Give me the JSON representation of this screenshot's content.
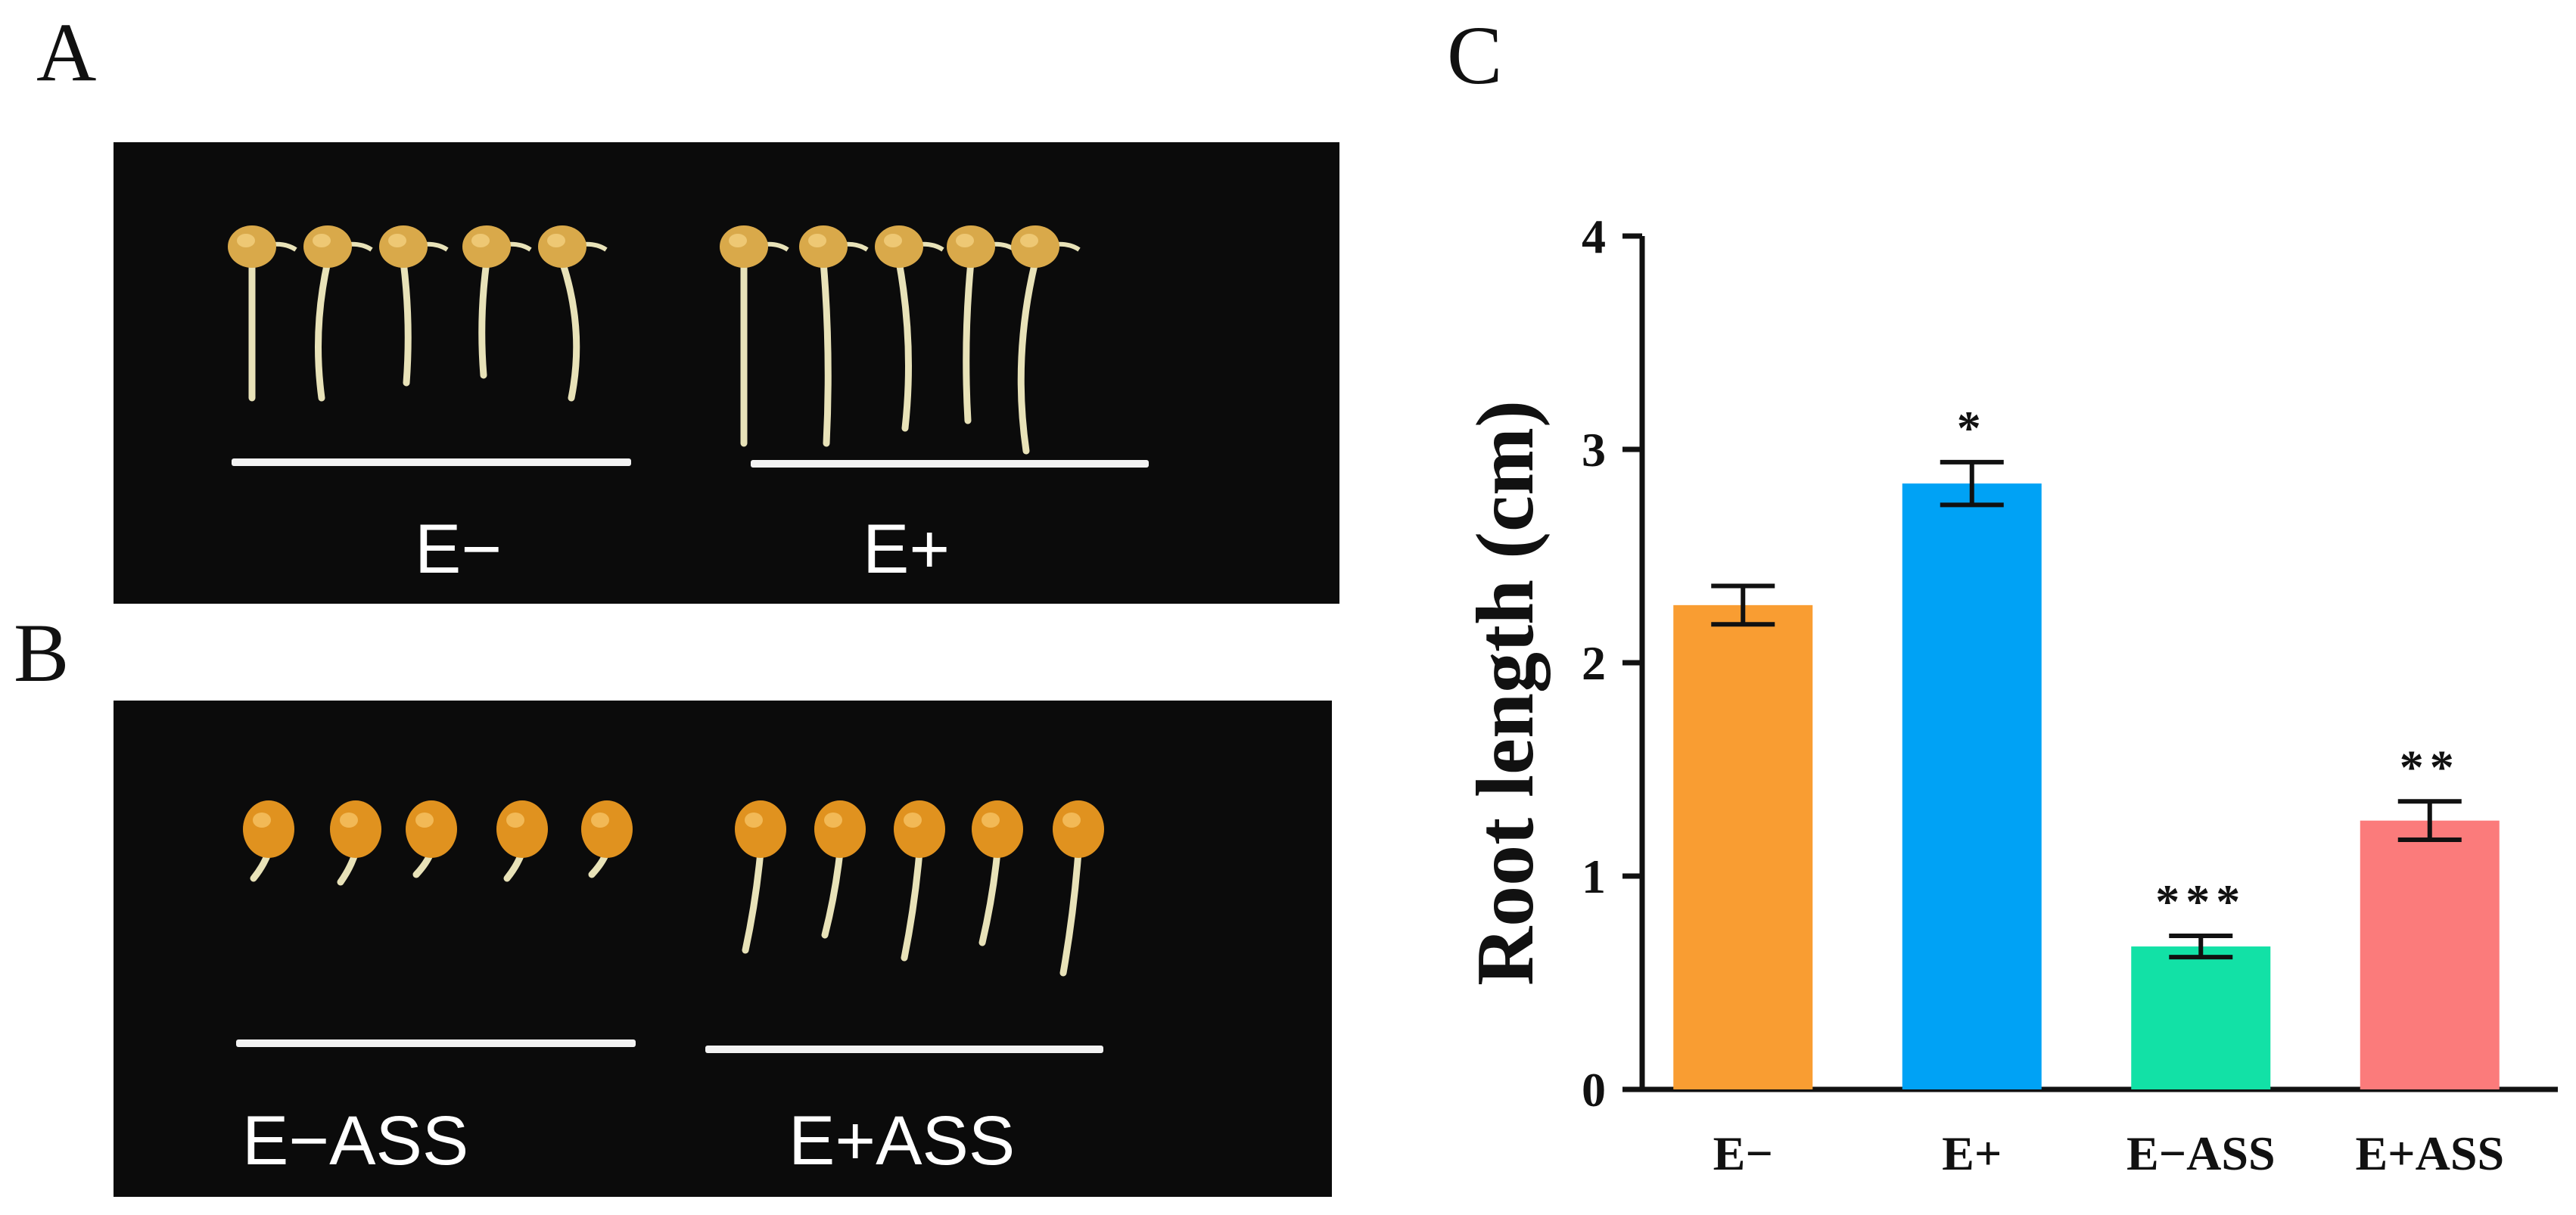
{
  "panels": {
    "a": {
      "letter": "A",
      "left_group": "E−",
      "right_group": "E+"
    },
    "b": {
      "letter": "B",
      "left_group": "E−ASS",
      "right_group": "E+ASS"
    },
    "c": {
      "letter": "C"
    }
  },
  "colors": {
    "photo_background": "#0b0b0b",
    "seed_root": "#e8e2b8",
    "seed_kernel_a": "#d9a94a",
    "seed_kernel_b": "#e0921f"
  },
  "chart_data": {
    "type": "bar",
    "title": "",
    "xlabel": "",
    "ylabel": "Root length (cm)",
    "ylim": [
      0,
      4
    ],
    "yticks": [
      "0",
      "1",
      "2",
      "3",
      "4"
    ],
    "categories": [
      "E−",
      "E+",
      "E−ASS",
      "E+ASS"
    ],
    "values": [
      2.27,
      2.84,
      0.67,
      1.26
    ],
    "errors": [
      0.09,
      0.1,
      0.05,
      0.09
    ],
    "significance": [
      "",
      "*",
      "***",
      "**"
    ],
    "colors": [
      "#f99d32",
      "#00a2f5",
      "#12e1a6",
      "#fb7b7b"
    ],
    "grid": false
  }
}
